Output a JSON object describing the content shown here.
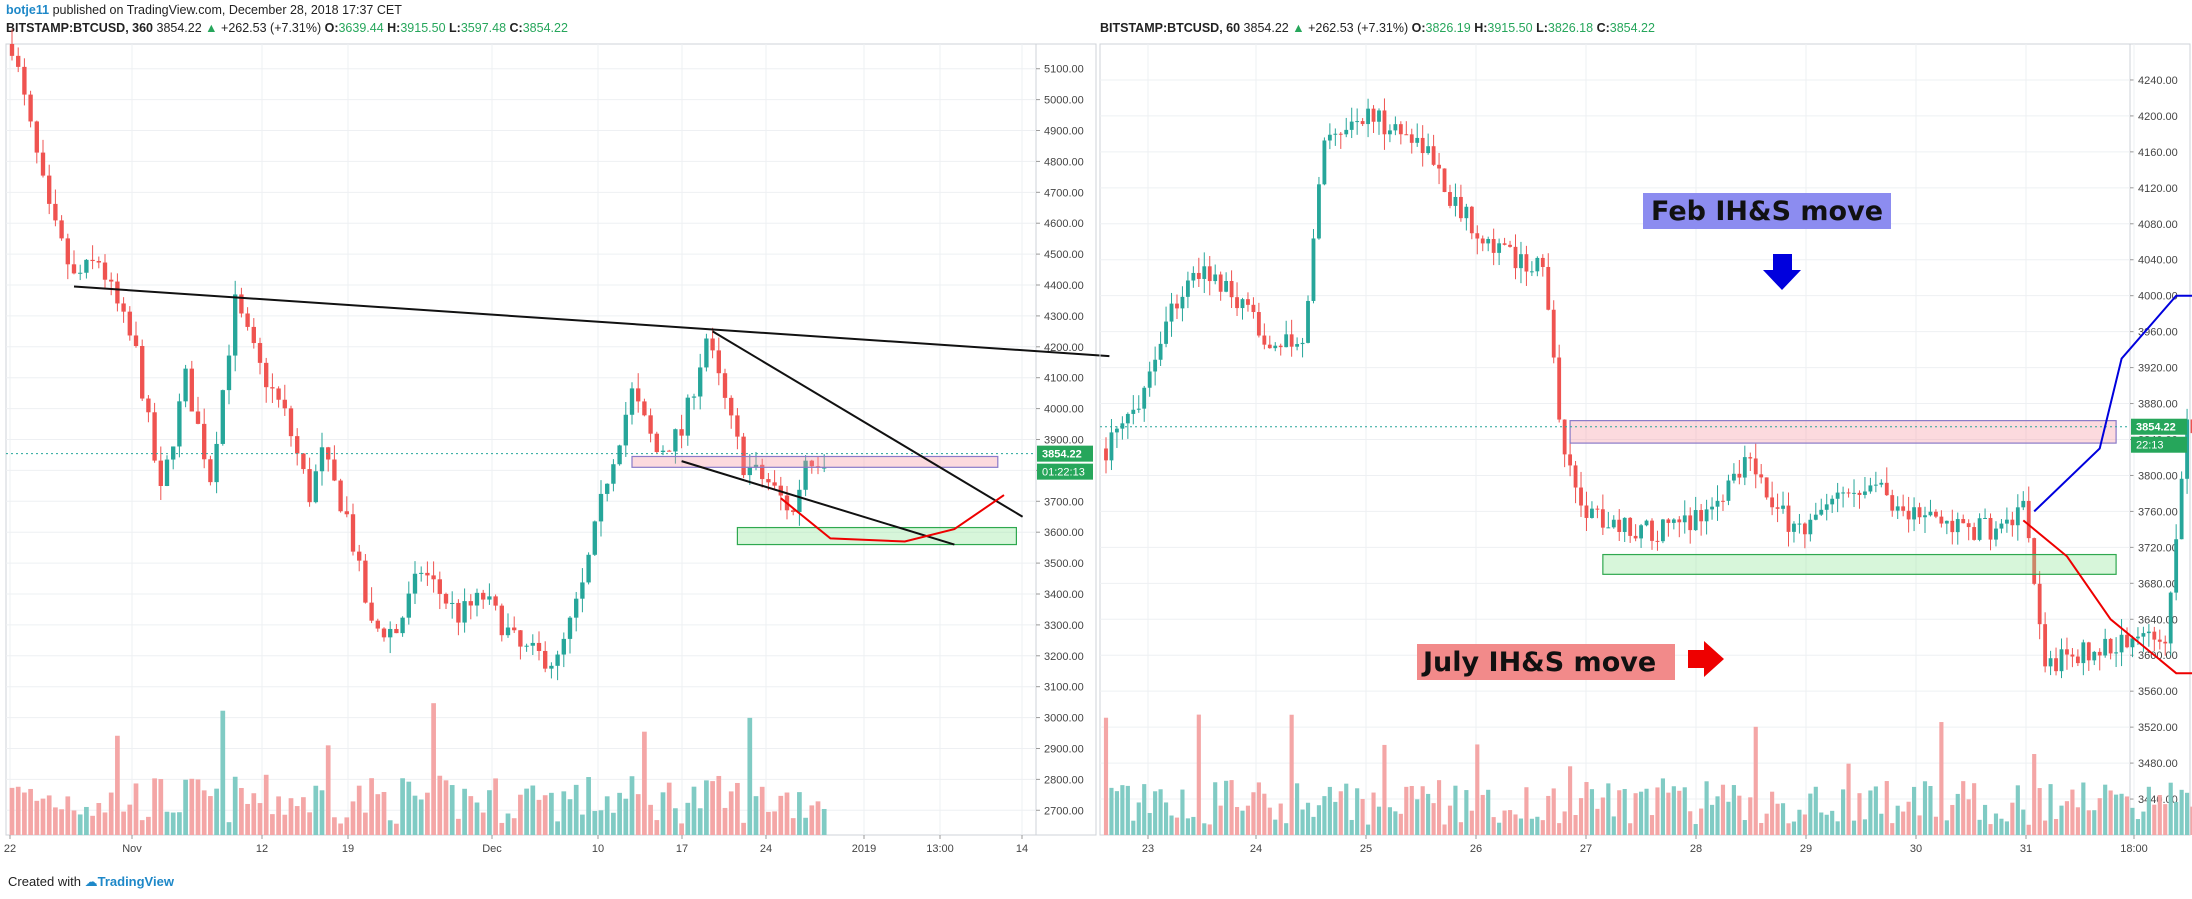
{
  "header": {
    "author": "botje11",
    "published_text": "published on TradingView.com, December 28, 2018 17:37 CET"
  },
  "footer": {
    "created_with": "Created with",
    "brand": "TradingView"
  },
  "colors": {
    "up": "#26a69a",
    "down": "#ef5350",
    "up_volume": "#80cbc4",
    "down_volume": "#f4a6a6",
    "price_tag": "#26a65b",
    "annotation_blue": "#0000dd",
    "annotation_red": "#ee0000",
    "label_feb_bg": "#8c8cf0",
    "label_july_bg": "#f28a8a"
  },
  "chart_data": [
    {
      "type": "candlestick",
      "symbol": "BITSTAMP:BTCUSD",
      "interval": "360",
      "last": "3854.22",
      "change": "+262.53 (+7.31%)",
      "open_label": "O:",
      "open": "3639.44",
      "high_label": "H:",
      "high": "3915.50",
      "low_label": "L:",
      "low": "3597.48",
      "close_label": "C:",
      "close": "3854.22",
      "price_tag": "3854.22",
      "countdown": "01:22:13",
      "ylim": [
        2620,
        5180
      ],
      "y_ticks": [
        "5100.00",
        "5000.00",
        "4900.00",
        "4800.00",
        "4700.00",
        "4600.00",
        "4500.00",
        "4400.00",
        "4300.00",
        "4200.00",
        "4100.00",
        "4000.00",
        "3900.00",
        "3800.00",
        "3700.00",
        "3600.00",
        "3500.00",
        "3400.00",
        "3300.00",
        "3200.00",
        "3100.00",
        "3000.00",
        "2900.00",
        "2800.00",
        "2700.00"
      ],
      "x_ticks": [
        "22",
        "Nov",
        "12",
        "19",
        "Dec",
        "10",
        "17",
        "24",
        "2019",
        "13:00",
        "14"
      ],
      "price_path": [
        [
          0,
          5180
        ],
        [
          6,
          4630
        ],
        [
          10,
          4420
        ],
        [
          14,
          4480
        ],
        [
          20,
          4180
        ],
        [
          24,
          3720
        ],
        [
          28,
          4100
        ],
        [
          32,
          3780
        ],
        [
          36,
          4340
        ],
        [
          40,
          4130
        ],
        [
          44,
          3980
        ],
        [
          48,
          3720
        ],
        [
          50,
          3850
        ],
        [
          54,
          3650
        ],
        [
          58,
          3290
        ],
        [
          62,
          3280
        ],
        [
          66,
          3480
        ],
        [
          72,
          3330
        ],
        [
          76,
          3390
        ],
        [
          82,
          3220
        ],
        [
          88,
          3180
        ],
        [
          92,
          3420
        ],
        [
          96,
          3780
        ],
        [
          100,
          4050
        ],
        [
          104,
          3860
        ],
        [
          108,
          3920
        ],
        [
          112,
          4230
        ],
        [
          116,
          3950
        ],
        [
          118,
          3820
        ],
        [
          122,
          3760
        ],
        [
          126,
          3660
        ],
        [
          128,
          3840
        ]
      ],
      "trendlines": [
        {
          "x1": 10,
          "y1": 4395,
          "x2": 177,
          "y2": 4170
        },
        {
          "x1": 113,
          "y1": 4250,
          "x2": 163,
          "y2": 3650
        },
        {
          "x1": 108,
          "y1": 3830,
          "x2": 152,
          "y2": 3560
        }
      ],
      "zones": [
        {
          "kind": "resistance",
          "x1": 100,
          "x2": 159,
          "y1": 3810,
          "y2": 3845
        },
        {
          "kind": "support",
          "x1": 117,
          "x2": 162,
          "y1": 3560,
          "y2": 3615
        }
      ],
      "projection": [
        [
          124,
          3710
        ],
        [
          132,
          3580
        ],
        [
          144,
          3570
        ],
        [
          152,
          3610
        ],
        [
          160,
          3720
        ]
      ]
    },
    {
      "type": "candlestick",
      "symbol": "BITSTAMP:BTCUSD",
      "interval": "60",
      "last": "3854.22",
      "change": "+262.53 (+7.31%)",
      "open_label": "O:",
      "open": "3826.19",
      "high_label": "H:",
      "high": "3915.50",
      "low_label": "L:",
      "low": "3826.18",
      "close_label": "C:",
      "close": "3854.22",
      "price_tag": "3854.22",
      "countdown": "22:13",
      "ylim": [
        3400,
        4280
      ],
      "y_ticks": [
        "4240.00",
        "4200.00",
        "4160.00",
        "4120.00",
        "4080.00",
        "4040.00",
        "4000.00",
        "3960.00",
        "3920.00",
        "3880.00",
        "3840.00",
        "3800.00",
        "3760.00",
        "3720.00",
        "3680.00",
        "3640.00",
        "3600.00",
        "3560.00",
        "3520.00",
        "3480.00",
        "3440.00"
      ],
      "x_ticks": [
        "23",
        "24",
        "25",
        "26",
        "27",
        "28",
        "29",
        "30",
        "31",
        "18:00"
      ],
      "price_path": [
        [
          0,
          3830
        ],
        [
          3,
          3850
        ],
        [
          7,
          3900
        ],
        [
          12,
          3990
        ],
        [
          18,
          4030
        ],
        [
          24,
          3990
        ],
        [
          30,
          3950
        ],
        [
          36,
          3940
        ],
        [
          40,
          4180
        ],
        [
          48,
          4200
        ],
        [
          58,
          4170
        ],
        [
          64,
          4100
        ],
        [
          72,
          4050
        ],
        [
          80,
          4030
        ],
        [
          84,
          3820
        ],
        [
          88,
          3760
        ],
        [
          96,
          3740
        ],
        [
          104,
          3740
        ],
        [
          112,
          3770
        ],
        [
          118,
          3830
        ],
        [
          122,
          3760
        ],
        [
          128,
          3740
        ],
        [
          134,
          3770
        ],
        [
          140,
          3800
        ],
        [
          146,
          3760
        ],
        [
          152,
          3750
        ],
        [
          158,
          3740
        ],
        [
          164,
          3740
        ],
        [
          168,
          3760
        ],
        [
          172,
          3590
        ],
        [
          178,
          3600
        ],
        [
          184,
          3610
        ],
        [
          190,
          3620
        ],
        [
          194,
          3620
        ],
        [
          198,
          3860
        ]
      ],
      "zones": [
        {
          "kind": "resistance",
          "x1": 85,
          "x2": 185,
          "y1": 3836,
          "y2": 3861
        },
        {
          "kind": "support",
          "x1": 91,
          "x2": 185,
          "y1": 3690,
          "y2": 3712
        }
      ],
      "blue_projection": [
        [
          170,
          3760
        ],
        [
          182,
          3830
        ],
        [
          186,
          3930
        ],
        [
          196,
          4000
        ],
        [
          206,
          4000
        ],
        [
          216,
          3900
        ],
        [
          220,
          3810
        ],
        [
          226,
          3800
        ],
        [
          232,
          3820
        ],
        [
          240,
          4000
        ],
        [
          246,
          4130
        ]
      ],
      "red_projection": [
        [
          168,
          3750
        ],
        [
          176,
          3710
        ],
        [
          184,
          3640
        ],
        [
          196,
          3580
        ],
        [
          208,
          3580
        ],
        [
          218,
          3640
        ],
        [
          224,
          3740
        ],
        [
          230,
          3810
        ]
      ],
      "annotations": [
        {
          "text": "Feb IH&S move",
          "color": "label_feb_bg"
        },
        {
          "text": "July IH&S move",
          "color": "label_july_bg"
        }
      ]
    }
  ]
}
